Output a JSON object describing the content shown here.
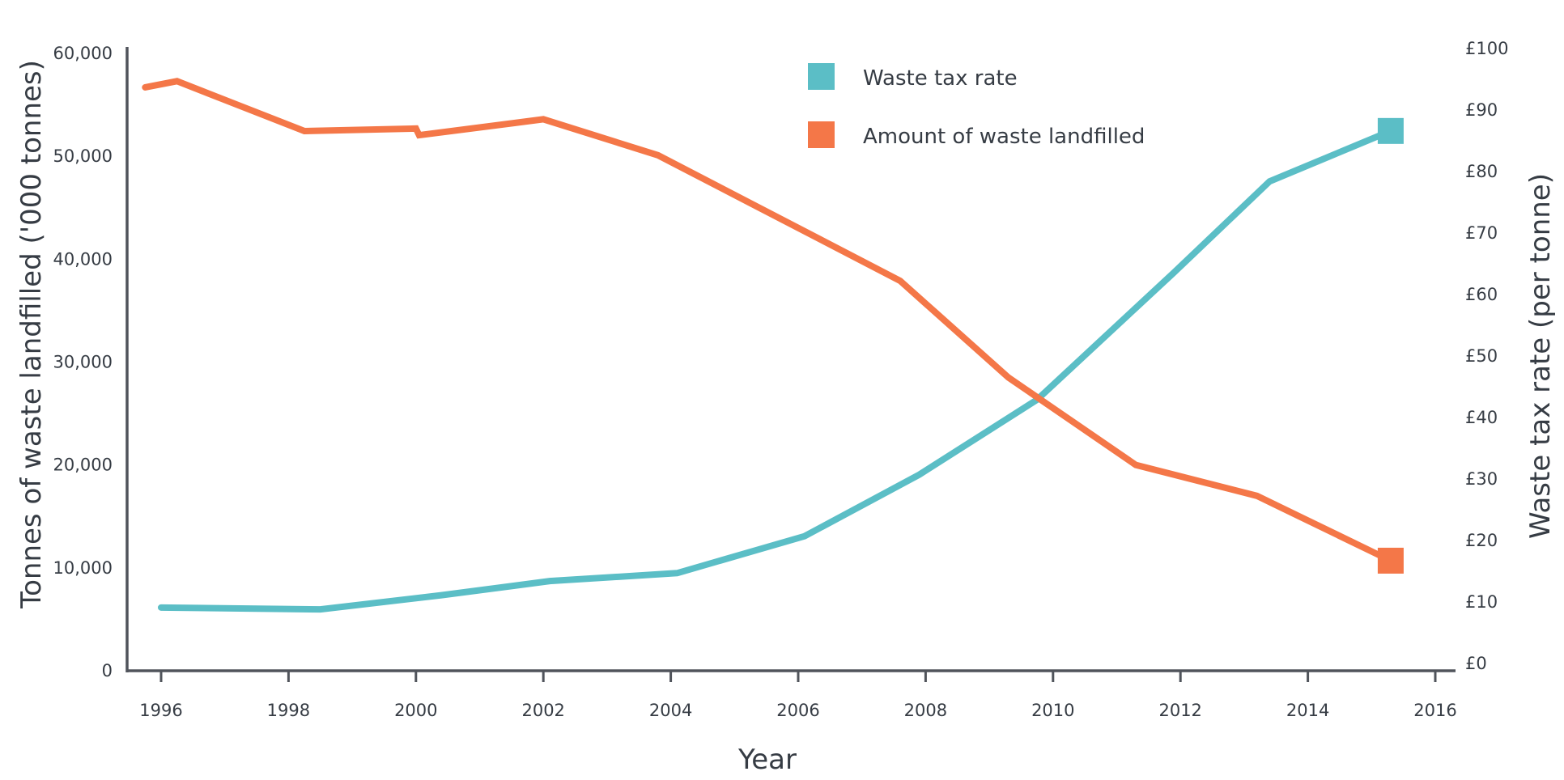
{
  "chart_data": {
    "type": "line",
    "title": "",
    "xlabel": "Year",
    "ylabel_left": "Tonnes of waste landfilled ('000 tonnes)",
    "ylabel_right": "Waste tax rate (per tonne)",
    "xlim": [
      1995.5,
      2016.2
    ],
    "ylim_left": [
      0,
      60000
    ],
    "ylim_right": [
      0,
      100
    ],
    "x_ticks": [
      1996,
      1998,
      2000,
      2002,
      2004,
      2006,
      2008,
      2010,
      2012,
      2014,
      2016
    ],
    "x_tick_labels": [
      "1996",
      "1998",
      "2000",
      "2002",
      "2004",
      "2006",
      "2008",
      "2010",
      "2012",
      "2014",
      "2016"
    ],
    "y_left_ticks": [
      0,
      10000,
      20000,
      30000,
      40000,
      50000,
      60000
    ],
    "y_left_tick_labels": [
      "0",
      "10,000",
      "20,000",
      "30,000",
      "40,000",
      "50,000",
      "60,000"
    ],
    "y_right_ticks": [
      0,
      10,
      20,
      30,
      40,
      50,
      60,
      70,
      80,
      90,
      100
    ],
    "y_right_tick_labels": [
      "£0",
      "£10",
      "£20",
      "£30",
      "£40",
      "£50",
      "£60",
      "£70",
      "£80",
      "£90",
      "£100"
    ],
    "grid": false,
    "legend_position": "top-center",
    "series": [
      {
        "name": "Waste tax rate",
        "axis": "right",
        "color": "#5bbec6",
        "end_marker": "square",
        "points": [
          [
            1996.0,
            9.1
          ],
          [
            1998.5,
            8.8
          ],
          [
            2000.4,
            11.1
          ],
          [
            2002.1,
            13.4
          ],
          [
            2004.1,
            14.7
          ],
          [
            2006.1,
            20.7
          ],
          [
            2007.9,
            30.7
          ],
          [
            2009.75,
            42.9
          ],
          [
            2011.9,
            63.6
          ],
          [
            2013.4,
            78.4
          ],
          [
            2015.3,
            86.6
          ]
        ]
      },
      {
        "name": "Amount of waste landfilled",
        "axis": "left",
        "color": "#f47748",
        "end_marker": "square",
        "points": [
          [
            1995.75,
            56700
          ],
          [
            1996.25,
            57300
          ],
          [
            1998.25,
            52450
          ],
          [
            2000.0,
            52700
          ],
          [
            2000.05,
            52050
          ],
          [
            2002.0,
            53600
          ],
          [
            2003.8,
            50100
          ],
          [
            2007.6,
            37900
          ],
          [
            2009.3,
            28500
          ],
          [
            2011.3,
            20000
          ],
          [
            2013.2,
            17000
          ],
          [
            2015.3,
            10700
          ]
        ]
      }
    ]
  },
  "colors": {
    "axis": "#50545b",
    "text": "#363c44"
  }
}
